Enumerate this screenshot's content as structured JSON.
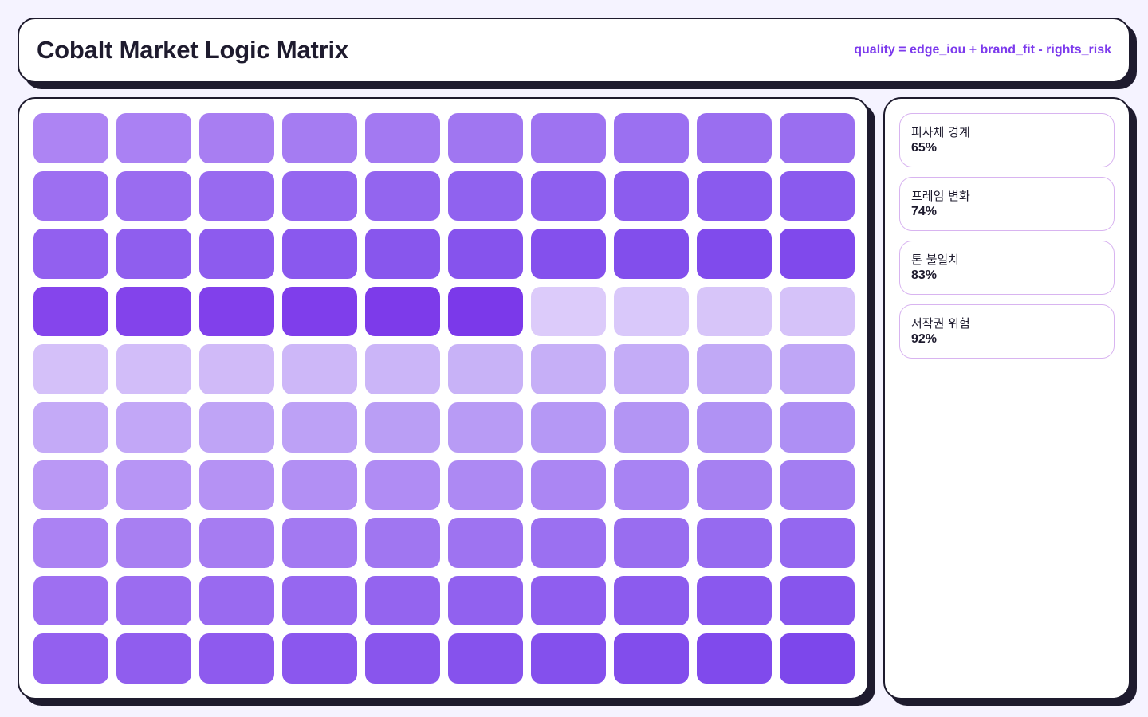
{
  "header": {
    "title": "Cobalt Market Logic Matrix",
    "formula": "quality = edge_iou + brand_fit - rights_risk"
  },
  "matrix": {
    "rows": 10,
    "cols": 10,
    "colors": [
      [
        "#ad84f3",
        "#aa81f3",
        "#a87ef2",
        "#a57cf2",
        "#a379f2",
        "#a076f1",
        "#9e73f1",
        "#9b70f1",
        "#9a6ef0",
        "#9a6ef0"
      ],
      [
        "#9d6ff1",
        "#9a6cf0",
        "#986af0",
        "#9567f0",
        "#9365ef",
        "#9062ef",
        "#8e5fef",
        "#8c5cee",
        "#8a5aee",
        "#8a5aee"
      ],
      [
        "#9260ef",
        "#8f5eee",
        "#8d5bee",
        "#8a58ee",
        "#8856ed",
        "#8653ed",
        "#8450ed",
        "#824eec",
        "#804bec",
        "#8049ec"
      ],
      [
        "#8545ec",
        "#8343eb",
        "#8140eb",
        "#7f3eeb",
        "#7d3bea",
        "#7b39ea",
        "#dccbfa",
        "#d9c8fa",
        "#d7c5f9",
        "#d5c2f9"
      ],
      [
        "#d4c0f9",
        "#d2bdf9",
        "#d0baf8",
        "#cdb7f8",
        "#cbb5f8",
        "#c8b2f7",
        "#c6aff7",
        "#c4acf7",
        "#c1a9f6",
        "#bfa6f6"
      ],
      [
        "#c4aaf7",
        "#c2a7f7",
        "#bfa4f6",
        "#bda1f6",
        "#ba9ef5",
        "#b89bf5",
        "#b598f5",
        "#b395f4",
        "#b092f4",
        "#ae8ff4"
      ],
      [
        "#ba98f5",
        "#b795f5",
        "#b592f4",
        "#b28ff4",
        "#b08cf4",
        "#ad89f3",
        "#ab86f3",
        "#a883f3",
        "#a680f2",
        "#a37df2"
      ],
      [
        "#ab82f3",
        "#a87ff2",
        "#a67cf2",
        "#a379f2",
        "#a076f1",
        "#9e73f1",
        "#9b70f1",
        "#996df0",
        "#966af0",
        "#9467f0"
      ],
      [
        "#9e6ff1",
        "#9b6cf0",
        "#996af0",
        "#9667f0",
        "#9464ef",
        "#9161ef",
        "#8f5eef",
        "#8c5bee",
        "#8a58ee",
        "#8755ed"
      ],
      [
        "#9360ef",
        "#905dee",
        "#8e5aee",
        "#8b57ee",
        "#8955ed",
        "#8652ed",
        "#8450ed",
        "#824dec",
        "#804aec",
        "#7d47eb"
      ]
    ]
  },
  "metrics": [
    {
      "label": "피사체 경계",
      "value": "65%"
    },
    {
      "label": "프레임 변화",
      "value": "74%"
    },
    {
      "label": "톤 불일치",
      "value": "83%"
    },
    {
      "label": "저작권 위험",
      "value": "92%"
    }
  ]
}
